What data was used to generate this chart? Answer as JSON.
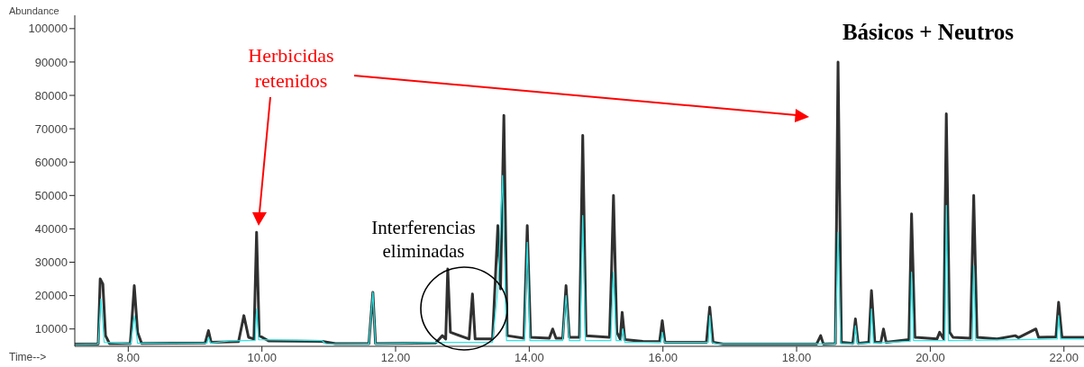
{
  "chart_data": {
    "type": "line",
    "title": "Básicos + Neutros",
    "xlabel": "Time-->",
    "ylabel": "Abundance",
    "xlim": [
      7.2,
      22.3
    ],
    "xticks": [
      {
        "value": 8,
        "label": "8.00"
      },
      {
        "value": 10,
        "label": "10.00"
      },
      {
        "value": 12,
        "label": "12.00"
      },
      {
        "value": 14,
        "label": "14.00"
      },
      {
        "value": 16,
        "label": "16.00"
      },
      {
        "value": 18,
        "label": "18.00"
      },
      {
        "value": 20,
        "label": "20.00"
      },
      {
        "value": 22,
        "label": "22.00"
      }
    ],
    "ylim": [
      4800,
      104000
    ],
    "yticks": [
      10000,
      20000,
      30000,
      40000,
      50000,
      60000,
      70000,
      80000,
      90000,
      100000
    ],
    "marker": "none",
    "annotations": [
      "Herbicidas retenidos",
      "Interferencias eliminadas"
    ],
    "series": [
      {
        "color": "#303030",
        "x": [
          7.2,
          7.55,
          7.58,
          7.62,
          7.66,
          7.72,
          8.03,
          8.09,
          8.14,
          8.2,
          9.15,
          9.2,
          9.24,
          9.65,
          9.73,
          9.8,
          9.88,
          9.92,
          9.96,
          10.1,
          10.9,
          11.1,
          11.6,
          11.66,
          11.7,
          12.6,
          12.7,
          12.75,
          12.78,
          12.82,
          13.1,
          13.15,
          13.19,
          13.45,
          13.53,
          13.57,
          13.62,
          13.67,
          13.92,
          13.97,
          14.02,
          14.3,
          14.35,
          14.4,
          14.5,
          14.55,
          14.6,
          14.75,
          14.8,
          14.85,
          15.2,
          15.23,
          15.26,
          15.31,
          15.36,
          15.39,
          15.43,
          15.7,
          15.95,
          15.99,
          16.03,
          16.65,
          16.7,
          16.75,
          16.9,
          18.3,
          18.36,
          18.4,
          18.58,
          18.62,
          18.67,
          18.84,
          18.88,
          18.92,
          19.08,
          19.12,
          19.17,
          19.26,
          19.3,
          19.34,
          19.68,
          19.72,
          19.77,
          20.1,
          20.14,
          20.2,
          20.24,
          20.29,
          20.34,
          20.6,
          20.65,
          20.7,
          21.0,
          21.27,
          21.32,
          21.58,
          21.62,
          21.88,
          21.92,
          21.97,
          22.3
        ],
        "values": [
          5500,
          5500,
          25000,
          23500,
          8000,
          5600,
          5600,
          23000,
          9000,
          5700,
          5800,
          9500,
          6000,
          6200,
          14000,
          7500,
          7000,
          39000,
          8000,
          6400,
          6300,
          5600,
          5600,
          21000,
          5600,
          5800,
          8000,
          7000,
          28000,
          9000,
          7000,
          20500,
          7000,
          7000,
          41000,
          22000,
          74000,
          8000,
          7200,
          41000,
          7500,
          7200,
          10000,
          7200,
          7200,
          23000,
          7500,
          7500,
          68000,
          8000,
          7500,
          27000,
          50000,
          9000,
          7000,
          15000,
          6800,
          6300,
          6200,
          12500,
          6000,
          6000,
          16500,
          6000,
          5500,
          5500,
          8000,
          5500,
          5600,
          90000,
          6000,
          5700,
          13000,
          5700,
          6000,
          21500,
          6000,
          6000,
          10000,
          6000,
          6800,
          44500,
          7500,
          7000,
          9000,
          7000,
          74500,
          9000,
          7500,
          7200,
          50000,
          7500,
          7000,
          8000,
          7400,
          10000,
          7500,
          7600,
          18000,
          7500,
          7500
        ]
      },
      {
        "color": "#2ee6e6",
        "x": [
          7.2,
          7.55,
          7.59,
          7.64,
          8.04,
          8.09,
          8.14,
          9.18,
          9.2,
          9.23,
          9.5,
          9.9,
          9.92,
          9.95,
          10.9,
          10.95,
          11.6,
          11.66,
          11.7,
          12.65,
          13.45,
          13.53,
          13.6,
          13.66,
          13.93,
          13.97,
          14.01,
          14.5,
          14.55,
          14.6,
          14.76,
          14.8,
          14.84,
          15.22,
          15.26,
          15.3,
          15.38,
          15.4,
          15.43,
          15.97,
          15.99,
          16.02,
          16.68,
          16.7,
          16.73,
          16.8,
          18.58,
          18.62,
          18.66,
          18.86,
          18.88,
          18.91,
          19.1,
          19.12,
          19.15,
          19.7,
          19.72,
          19.75,
          20.22,
          20.24,
          20.27,
          20.63,
          20.65,
          20.68,
          21.9,
          21.92,
          21.95,
          22.3
        ],
        "values": [
          5400,
          5500,
          19000,
          6000,
          5600,
          14000,
          5700,
          5800,
          7500,
          5800,
          6400,
          6600,
          16000,
          6800,
          6500,
          5600,
          5500,
          21000,
          5500,
          6000,
          6000,
          22000,
          56000,
          6500,
          6500,
          36000,
          6500,
          6500,
          20000,
          6500,
          6500,
          44000,
          6500,
          6500,
          27000,
          6500,
          6500,
          10000,
          6000,
          6000,
          9000,
          6000,
          6000,
          14000,
          6000,
          5500,
          5500,
          39000,
          5600,
          5600,
          11000,
          5600,
          5800,
          16000,
          5800,
          6300,
          27000,
          6500,
          6500,
          47000,
          6500,
          6600,
          29000,
          6600,
          7000,
          14000,
          7000,
          7000
        ]
      }
    ]
  }
}
